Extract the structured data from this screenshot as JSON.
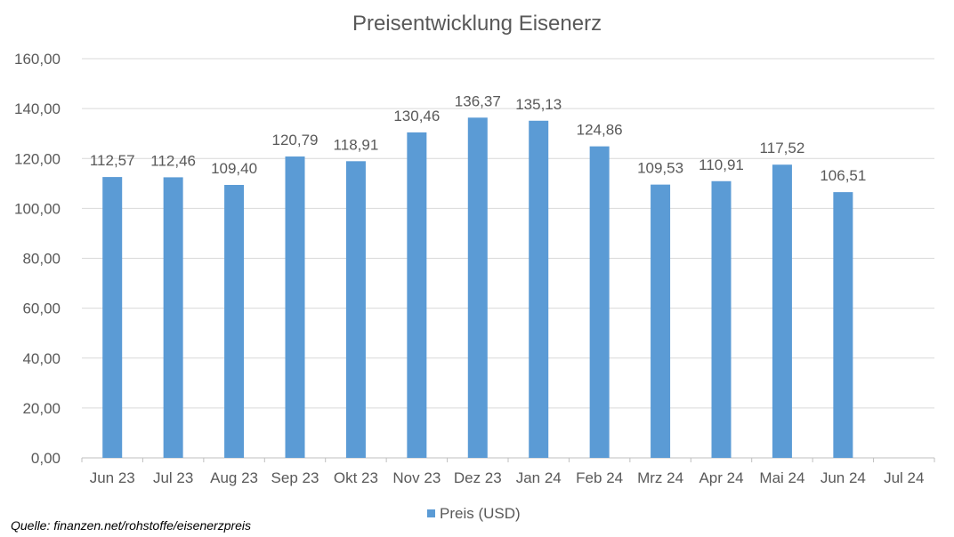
{
  "chart_data": {
    "type": "bar",
    "title": "Preisentwicklung Eisenerz",
    "xlabel": "",
    "ylabel": "",
    "categories": [
      "Jun 23",
      "Jul 23",
      "Aug 23",
      "Sep 23",
      "Okt 23",
      "Nov 23",
      "Dez 23",
      "Jan 24",
      "Feb 24",
      "Mrz 24",
      "Apr 24",
      "Mai 24",
      "Jun 24",
      "Jul 24"
    ],
    "series": [
      {
        "name": "Preis (USD)",
        "values": [
          112.57,
          112.46,
          109.4,
          120.79,
          118.91,
          130.46,
          136.37,
          135.13,
          124.86,
          109.53,
          110.91,
          117.52,
          106.51,
          null
        ],
        "labels": [
          "112,57",
          "112,46",
          "109,40",
          "120,79",
          "118,91",
          "130,46",
          "136,37",
          "135,13",
          "124,86",
          "109,53",
          "110,91",
          "117,52",
          "106,51",
          ""
        ]
      }
    ],
    "ylim": [
      0,
      160
    ],
    "yticks": [
      "0,00",
      "20,00",
      "40,00",
      "60,00",
      "80,00",
      "100,00",
      "120,00",
      "140,00",
      "160,00"
    ],
    "grid": true,
    "legend_position": "bottom",
    "colors": {
      "bar": "#5b9bd5",
      "grid": "#d9d9d9",
      "text": "#595959"
    }
  },
  "source": "Quelle: finanzen.net/rohstoffe/eisenerzpreis"
}
